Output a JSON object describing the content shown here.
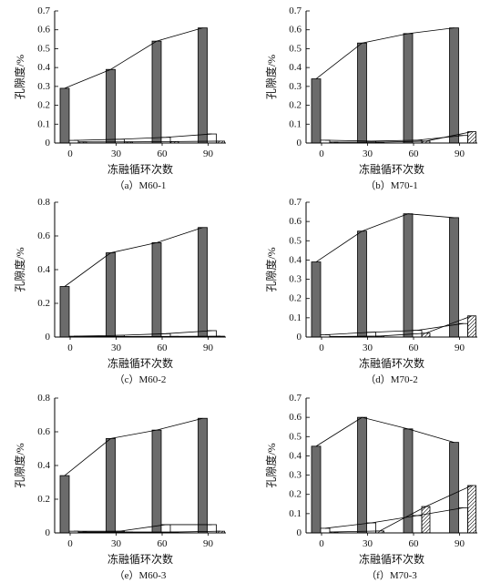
{
  "chart_data": [
    {
      "type": "bar",
      "line_overlay": true,
      "caption": "（a）M60-1",
      "xlabel": "冻融循环次数",
      "ylabel": "孔隙度/%",
      "categories": [
        "0",
        "30",
        "60",
        "90"
      ],
      "ylim": [
        0,
        0.7
      ],
      "yticks": [
        0,
        0.1,
        0.2,
        0.3,
        0.4,
        0.5,
        0.6,
        0.7
      ],
      "grid": false,
      "legend": false,
      "series": [
        {
          "fill": "#6b6b6b",
          "values": [
            0.29,
            0.39,
            0.54,
            0.61
          ]
        },
        {
          "fill": "#ffffff",
          "values": [
            0.014,
            0.02,
            0.03,
            0.048
          ]
        },
        {
          "fill": "#ffffff",
          "hatched": true,
          "values": [
            0.006,
            0.006,
            0.008,
            0.01
          ]
        }
      ]
    },
    {
      "type": "bar",
      "line_overlay": true,
      "caption": "（b）M70-1",
      "xlabel": "冻融循环次数",
      "ylabel": "孔隙度/%",
      "categories": [
        "0",
        "30",
        "60",
        "90"
      ],
      "ylim": [
        0,
        0.7
      ],
      "yticks": [
        0,
        0.1,
        0.2,
        0.3,
        0.4,
        0.5,
        0.6,
        0.7
      ],
      "grid": false,
      "legend": false,
      "series": [
        {
          "fill": "#6b6b6b",
          "values": [
            0.34,
            0.53,
            0.58,
            0.61
          ]
        },
        {
          "fill": "#ffffff",
          "values": [
            0.015,
            0.01,
            0.015,
            0.04
          ]
        },
        {
          "fill": "#ffffff",
          "hatched": true,
          "values": [
            0.005,
            0.005,
            0.01,
            0.06
          ]
        }
      ]
    },
    {
      "type": "bar",
      "line_overlay": true,
      "caption": "（c）M60-2",
      "xlabel": "冻融循环次数",
      "ylabel": "孔隙度/%",
      "categories": [
        "0",
        "30",
        "60",
        "90"
      ],
      "ylim": [
        0,
        0.8
      ],
      "yticks": [
        0,
        0.2,
        0.4,
        0.6,
        0.8
      ],
      "grid": false,
      "legend": false,
      "series": [
        {
          "fill": "#6b6b6b",
          "values": [
            0.3,
            0.5,
            0.56,
            0.65
          ]
        },
        {
          "fill": "#ffffff",
          "values": [
            0.005,
            0.01,
            0.02,
            0.038
          ]
        },
        {
          "fill": "#ffffff",
          "hatched": true,
          "values": [
            0.003,
            0.003,
            0.004,
            0.005
          ]
        }
      ]
    },
    {
      "type": "bar",
      "line_overlay": true,
      "caption": "（d）M70-2",
      "xlabel": "冻融循环次数",
      "ylabel": "孔隙度/%",
      "categories": [
        "0",
        "30",
        "60",
        "90"
      ],
      "ylim": [
        0,
        0.7
      ],
      "yticks": [
        0,
        0.1,
        0.2,
        0.3,
        0.4,
        0.5,
        0.6,
        0.7
      ],
      "grid": false,
      "legend": false,
      "series": [
        {
          "fill": "#6b6b6b",
          "values": [
            0.39,
            0.55,
            0.64,
            0.62
          ]
        },
        {
          "fill": "#ffffff",
          "values": [
            0.012,
            0.025,
            0.035,
            0.07
          ]
        },
        {
          "fill": "#ffffff",
          "hatched": true,
          "values": [
            0.003,
            0.005,
            0.02,
            0.11
          ]
        }
      ]
    },
    {
      "type": "bar",
      "line_overlay": true,
      "caption": "（e）M60-3",
      "xlabel": "冻融循环次数",
      "ylabel": "孔隙度/%",
      "categories": [
        "0",
        "30",
        "60",
        "90"
      ],
      "ylim": [
        0,
        0.8
      ],
      "yticks": [
        0,
        0.2,
        0.4,
        0.6,
        0.8
      ],
      "grid": false,
      "legend": false,
      "series": [
        {
          "fill": "#6b6b6b",
          "values": [
            0.34,
            0.56,
            0.61,
            0.68
          ]
        },
        {
          "fill": "#ffffff",
          "values": [
            0.01,
            0.01,
            0.049,
            0.049
          ]
        },
        {
          "fill": "#ffffff",
          "hatched": true,
          "values": [
            0.005,
            0.005,
            0.005,
            0.01
          ]
        }
      ]
    },
    {
      "type": "bar",
      "line_overlay": true,
      "caption": "（f）M70-3",
      "xlabel": "冻融循环次数",
      "ylabel": "孔隙度/%",
      "categories": [
        "0",
        "30",
        "60",
        "90"
      ],
      "ylim": [
        0,
        0.7
      ],
      "yticks": [
        0,
        0.1,
        0.2,
        0.3,
        0.4,
        0.5,
        0.6,
        0.7
      ],
      "grid": false,
      "legend": false,
      "series": [
        {
          "fill": "#6b6b6b",
          "values": [
            0.45,
            0.6,
            0.54,
            0.47
          ]
        },
        {
          "fill": "#ffffff",
          "values": [
            0.024,
            0.052,
            0.09,
            0.13
          ]
        },
        {
          "fill": "#ffffff",
          "hatched": true,
          "values": [
            0.005,
            0.01,
            0.137,
            0.246
          ]
        }
      ]
    }
  ]
}
